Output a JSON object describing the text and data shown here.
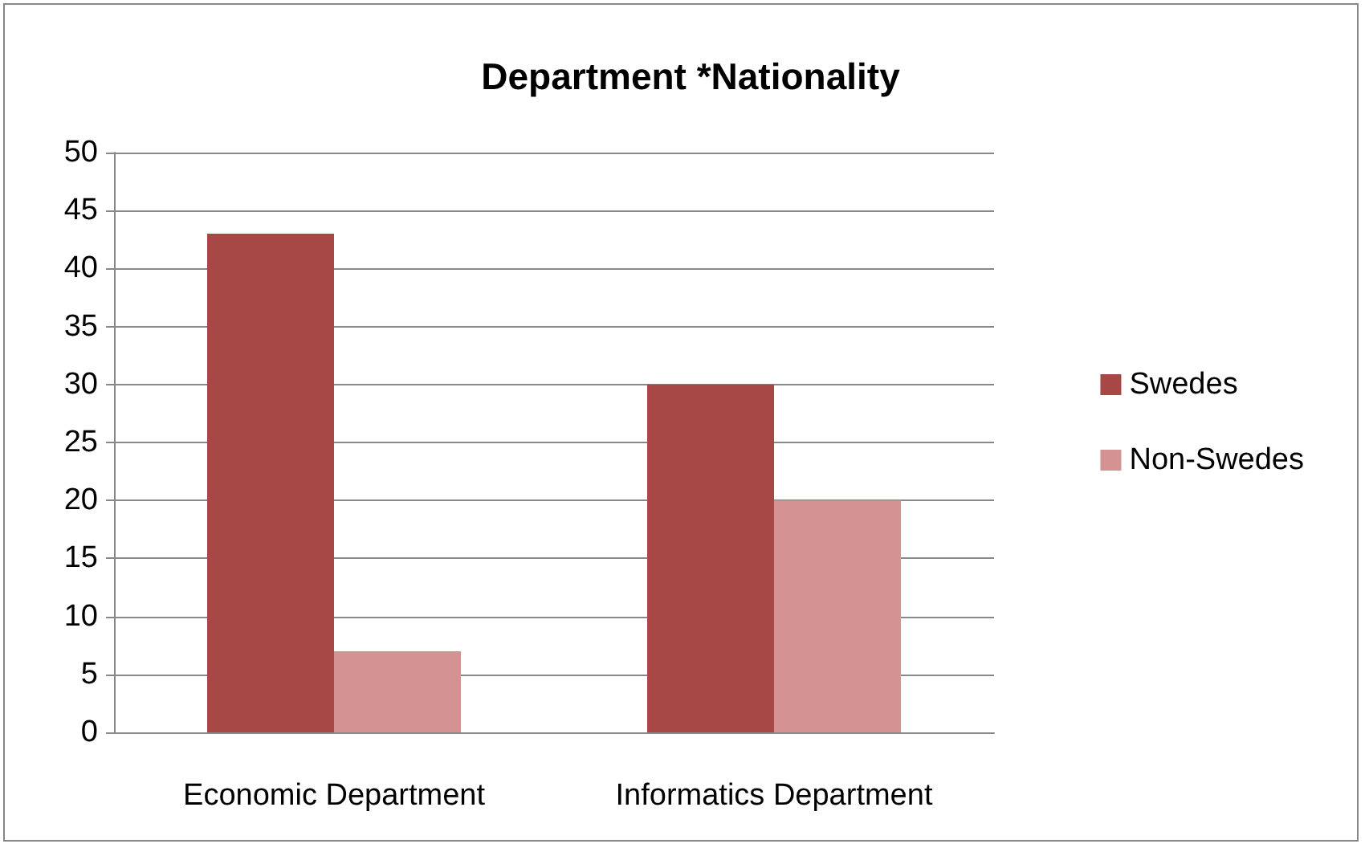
{
  "chart_data": {
    "type": "bar",
    "title": "Department *Nationality",
    "categories": [
      "Economic Department",
      "Informatics Department"
    ],
    "series": [
      {
        "name": "Swedes",
        "color": "#a84846",
        "values": [
          43,
          30
        ]
      },
      {
        "name": "Non-Swedes",
        "color": "#d49392",
        "values": [
          7,
          20
        ]
      }
    ],
    "ylim": [
      0,
      50
    ],
    "yticks": [
      0,
      5,
      10,
      15,
      20,
      25,
      30,
      35,
      40,
      45,
      50
    ],
    "grid": "y",
    "legend": "right"
  }
}
